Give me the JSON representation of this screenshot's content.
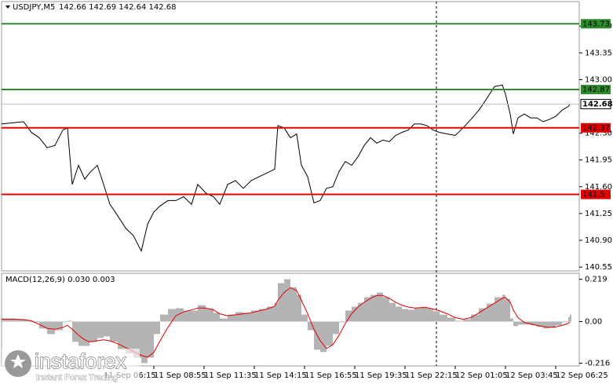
{
  "chart_data": [
    {
      "type": "line",
      "title": "USDJPY,M5",
      "subtitle": "142.66 142.69 142.64 142.68",
      "x": [
        0,
        9,
        14,
        19,
        24,
        29,
        34,
        39,
        42,
        45,
        49,
        53,
        56,
        61,
        65,
        69,
        74,
        79,
        84,
        89,
        93,
        97,
        101,
        106,
        111,
        116,
        121,
        125,
        130,
        135,
        139,
        144,
        149,
        154,
        159,
        164,
        169,
        174,
        176,
        180,
        184,
        188,
        191,
        195,
        199,
        203,
        207,
        211,
        215,
        219,
        223,
        227,
        231,
        235,
        239,
        243,
        247,
        251,
        255,
        259,
        263,
        267,
        271,
        275,
        279,
        284,
        289,
        294,
        299,
        304,
        309,
        314,
        319,
        321,
        324,
        326,
        329,
        333,
        337,
        341,
        345,
        349,
        353,
        357,
        361,
        362
      ],
      "series": [
        {
          "color": "#000000",
          "values": [
            142.42,
            142.44,
            142.45,
            142.31,
            142.24,
            142.11,
            142.14,
            142.34,
            142.37,
            141.63,
            141.88,
            141.7,
            141.78,
            141.88,
            141.63,
            141.37,
            141.22,
            141.06,
            140.96,
            140.76,
            141.11,
            141.27,
            141.35,
            141.42,
            141.42,
            141.47,
            141.37,
            141.63,
            141.52,
            141.47,
            141.37,
            141.63,
            141.68,
            141.58,
            141.68,
            141.73,
            141.78,
            141.83,
            142.4,
            142.37,
            142.24,
            142.29,
            141.88,
            141.73,
            141.39,
            141.42,
            141.58,
            141.6,
            141.8,
            141.93,
            141.88,
            141.99,
            142.14,
            142.24,
            142.17,
            142.21,
            142.19,
            142.27,
            142.31,
            142.34,
            142.42,
            142.42,
            142.4,
            142.34,
            142.31,
            142.29,
            142.27,
            142.37,
            142.48,
            142.6,
            142.75,
            142.91,
            142.93,
            142.81,
            142.55,
            142.29,
            142.5,
            142.55,
            142.5,
            142.5,
            142.45,
            142.48,
            142.52,
            142.6,
            142.65,
            142.68
          ]
        }
      ],
      "levels": [
        {
          "value": 143.73,
          "color": "#2e8b2e"
        },
        {
          "value": 142.87,
          "color": "#2e8b2e"
        },
        {
          "value": 142.37,
          "color": "#e00000"
        },
        {
          "value": 141.5,
          "color": "#e00000"
        }
      ],
      "last_price": {
        "value": 142.68,
        "color": "#c0c0c0"
      },
      "xlim": [
        0,
        368
      ],
      "ylim": [
        140.5,
        144.02
      ],
      "yticks": [
        {
          "value": 143.7,
          "label": "143.70"
        },
        143.35,
        {
          "value": 143.0,
          "label": "143.00"
        },
        {
          "value": 142.3,
          "label": "142.30"
        },
        141.95,
        {
          "value": 141.6,
          "label": "141.60"
        },
        141.25,
        {
          "value": 140.9,
          "label": "140.90"
        },
        140.55
      ]
    },
    {
      "type": "macd",
      "title": "MACD(12,26,9) 0.030 0.003",
      "x": [
        0,
        9,
        14,
        19,
        24,
        29,
        34,
        39,
        42,
        45,
        49,
        53,
        56,
        61,
        65,
        69,
        74,
        79,
        84,
        89,
        93,
        97,
        101,
        106,
        111,
        116,
        121,
        125,
        130,
        135,
        139,
        144,
        149,
        154,
        159,
        164,
        169,
        174,
        176,
        180,
        184,
        188,
        191,
        195,
        199,
        203,
        207,
        211,
        215,
        219,
        223,
        227,
        231,
        235,
        239,
        243,
        247,
        251,
        255,
        259,
        263,
        267,
        271,
        275,
        279,
        284,
        289,
        294,
        299,
        304,
        309,
        314,
        319,
        321,
        324,
        326,
        329,
        333,
        337,
        341,
        345,
        349,
        353,
        357,
        361,
        362
      ],
      "series": [
        {
          "kind": "histogram",
          "color": "#b4b4b4",
          "values": [
            0.016,
            0.012,
            0.008,
            -0.004,
            -0.036,
            -0.065,
            -0.045,
            -0.004,
            0.004,
            -0.105,
            -0.126,
            -0.126,
            -0.105,
            -0.085,
            -0.077,
            -0.105,
            -0.146,
            -0.166,
            -0.187,
            -0.215,
            -0.187,
            -0.065,
            0.036,
            0.065,
            0.069,
            0.057,
            0.057,
            0.085,
            0.069,
            0.045,
            0.016,
            0.036,
            0.049,
            0.045,
            0.057,
            0.065,
            0.077,
            0.097,
            0.199,
            0.219,
            0.178,
            0.138,
            0.036,
            -0.045,
            -0.146,
            -0.158,
            -0.126,
            -0.065,
            -0.004,
            0.057,
            0.077,
            0.097,
            0.126,
            0.138,
            0.15,
            0.126,
            0.097,
            0.077,
            0.065,
            0.061,
            0.069,
            0.077,
            0.069,
            0.053,
            0.036,
            0.02,
            0.004,
            0.012,
            0.036,
            0.069,
            0.093,
            0.126,
            0.138,
            0.118,
            0.016,
            -0.024,
            -0.016,
            -0.016,
            -0.02,
            -0.028,
            -0.036,
            -0.032,
            -0.02,
            -0.004,
            0.024,
            0.036
          ]
        },
        {
          "kind": "line",
          "color": "#e00000",
          "values": [
            0.012,
            0.012,
            0.01,
            0.004,
            -0.015,
            -0.035,
            -0.04,
            -0.03,
            -0.02,
            -0.04,
            -0.07,
            -0.095,
            -0.105,
            -0.1,
            -0.095,
            -0.1,
            -0.115,
            -0.135,
            -0.155,
            -0.175,
            -0.185,
            -0.16,
            -0.1,
            -0.03,
            0.03,
            0.05,
            0.06,
            0.07,
            0.07,
            0.06,
            0.04,
            0.03,
            0.035,
            0.04,
            0.045,
            0.055,
            0.065,
            0.08,
            0.11,
            0.15,
            0.175,
            0.16,
            0.11,
            0.04,
            -0.04,
            -0.1,
            -0.14,
            -0.12,
            -0.07,
            -0.01,
            0.04,
            0.075,
            0.1,
            0.12,
            0.135,
            0.135,
            0.12,
            0.1,
            0.085,
            0.075,
            0.07,
            0.072,
            0.072,
            0.065,
            0.055,
            0.04,
            0.02,
            0.012,
            0.02,
            0.045,
            0.07,
            0.095,
            0.12,
            0.125,
            0.1,
            0.06,
            0.02,
            -0.005,
            -0.012,
            -0.02,
            -0.026,
            -0.03,
            -0.028,
            -0.02,
            -0.01,
            -0.002
          ]
        }
      ],
      "xlim": [
        0,
        368
      ],
      "ylim": [
        -0.23,
        0.25
      ],
      "yticks": [
        0.219,
        {
          "value": 0,
          "label": "0.00"
        },
        -0.216
      ],
      "xticks": [
        {
          "value": 65,
          "label": "11 Sep 06:15"
        },
        {
          "value": 97,
          "label": "11 Sep 08:55"
        },
        {
          "value": 129,
          "label": "11 Sep 11:35"
        },
        {
          "value": 161,
          "label": "11 Sep 14:15"
        },
        {
          "value": 193,
          "label": "11 Sep 16:55"
        },
        {
          "value": 225,
          "label": "11 Sep 19:35"
        },
        {
          "value": 257,
          "label": "11 Sep 22:15"
        },
        {
          "value": 289,
          "label": "12 Sep 01:05"
        },
        {
          "value": 321,
          "label": "12 Sep 03:45"
        },
        {
          "value": 353,
          "label": "12 Sep 06:25"
        }
      ]
    }
  ],
  "watermark": {
    "brand": "instaforex",
    "tagline": "Instant Forex Trading"
  }
}
